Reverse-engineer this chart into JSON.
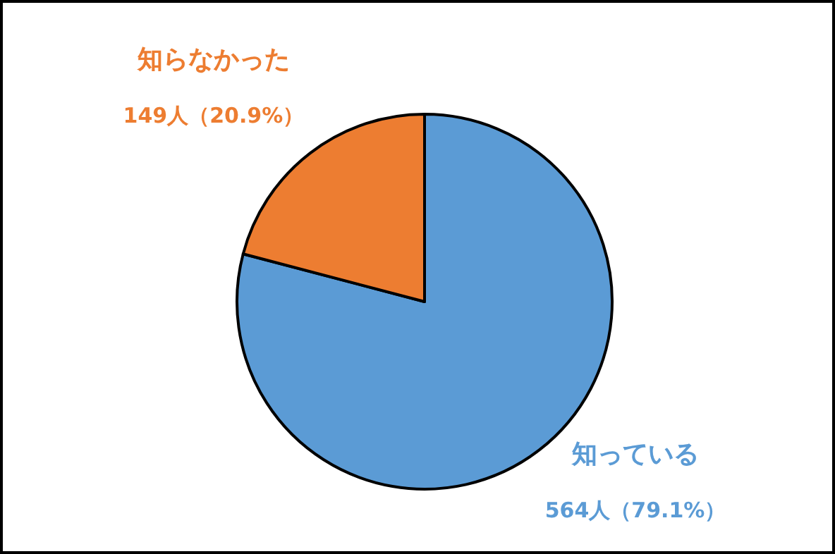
{
  "chart_data": {
    "type": "pie",
    "categories": [
      "知っている",
      "知らなかった"
    ],
    "values": [
      564,
      149
    ],
    "value_labels": [
      "564人（79.1%）",
      "149人（20.9%）"
    ],
    "colors": [
      "#5b9bd5",
      "#ed7d31"
    ]
  }
}
